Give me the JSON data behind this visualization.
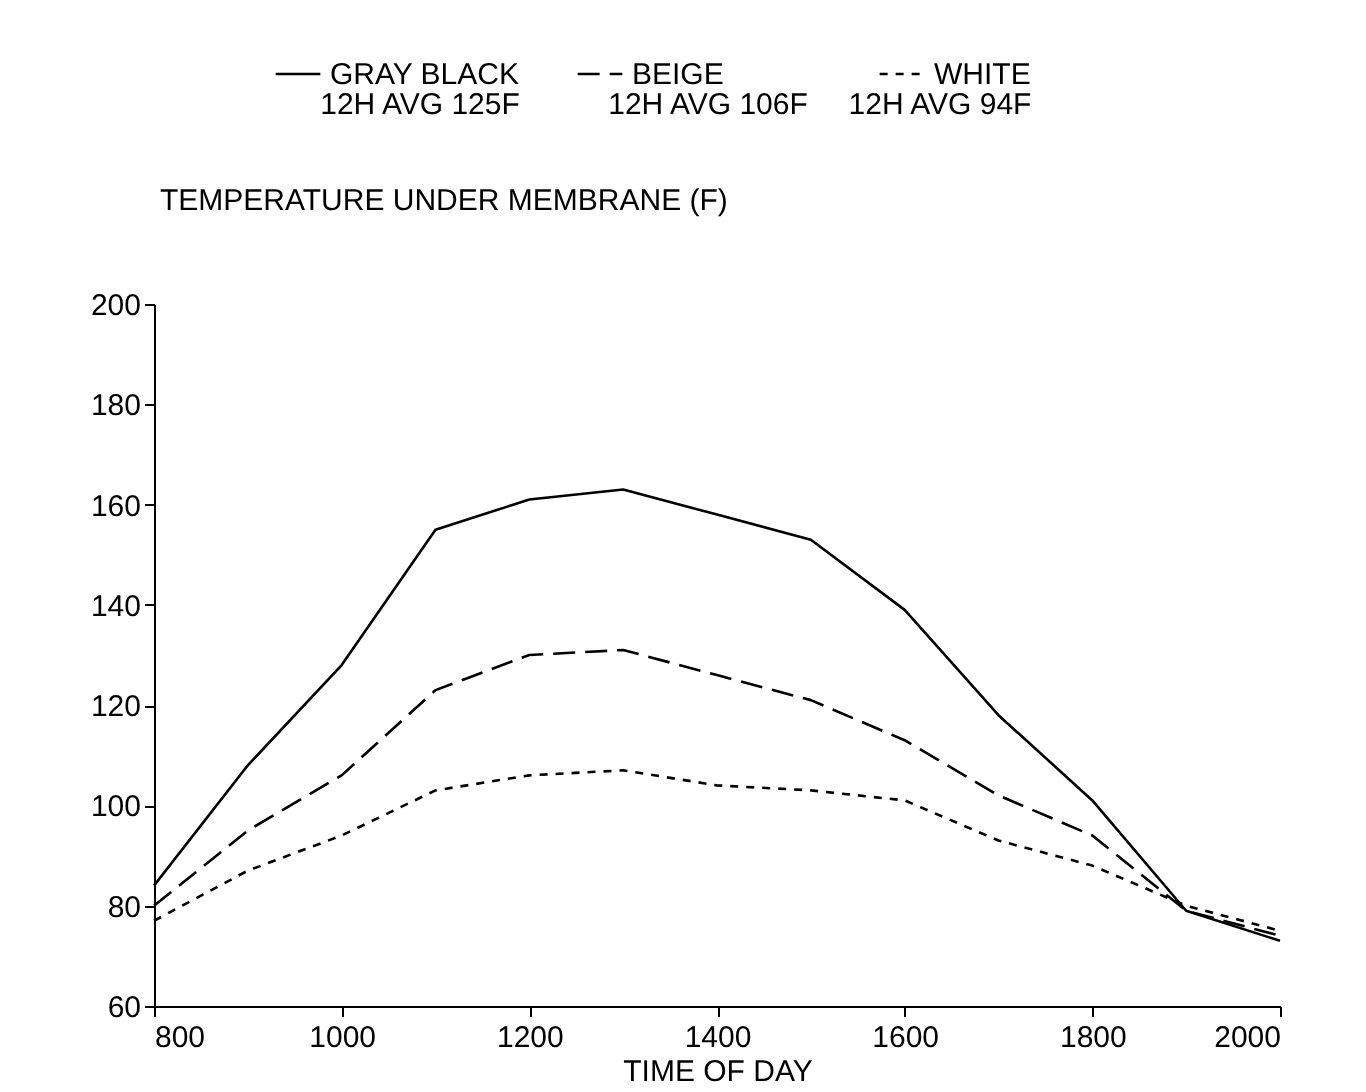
{
  "chart_data": {
    "type": "line",
    "ylabel": "TEMPERATURE UNDER MEMBRANE (F)",
    "xlabel": "TIME OF DAY",
    "x": [
      800,
      900,
      1000,
      1100,
      1200,
      1300,
      1400,
      1500,
      1600,
      1700,
      1800,
      1900,
      2000
    ],
    "series": [
      {
        "name": "GRAY BLACK",
        "color": "#000000",
        "line_style": "solid",
        "values": [
          84,
          108,
          128,
          155,
          161,
          163,
          158,
          153,
          139,
          118,
          101,
          79,
          73
        ]
      },
      {
        "name": "BEIGE",
        "color": "#000000",
        "line_style": "dashed",
        "values": [
          80,
          95,
          106,
          123,
          130,
          131,
          126,
          121,
          113,
          102,
          94,
          79,
          74
        ]
      },
      {
        "name": "WHITE",
        "color": "#000000",
        "line_style": "dotted",
        "values": [
          77,
          87,
          94,
          103,
          106,
          107,
          104,
          103,
          101,
          93,
          88,
          80,
          75
        ]
      }
    ],
    "annotations": [
      "12H AVG 125F",
      "12H AVG 106F",
      "12H AVG 94F"
    ],
    "xlim": [
      800,
      2000
    ],
    "xticks": [
      800,
      1000,
      1200,
      1400,
      1600,
      1800,
      2000
    ],
    "ylim": [
      60,
      200
    ],
    "yticks": [
      60,
      80,
      100,
      120,
      140,
      160,
      180,
      200
    ],
    "grid": false,
    "legend": "top",
    "marker": "none"
  }
}
